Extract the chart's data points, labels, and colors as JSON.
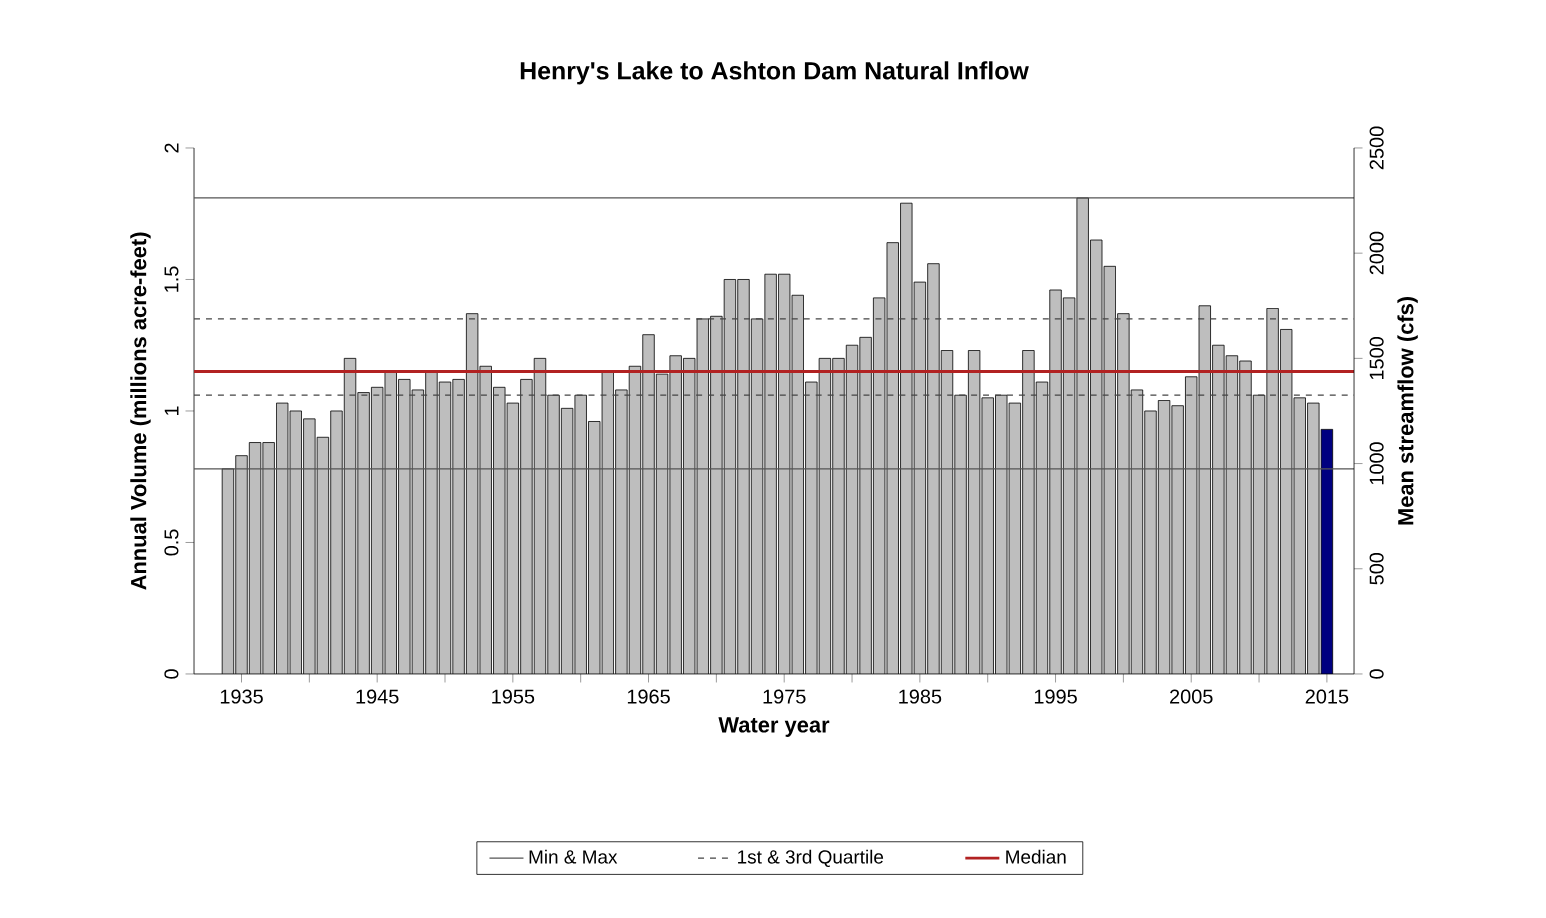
{
  "chart_data": {
    "type": "bar",
    "title": "Henry's Lake to Ashton Dam Natural Inflow",
    "xlabel": "Water year",
    "ylabel": "Annual Volume (millions acre-feet)",
    "y2label": "Mean streamflow (cfs)",
    "x": [
      1934,
      1935,
      1936,
      1937,
      1938,
      1939,
      1940,
      1941,
      1942,
      1943,
      1944,
      1945,
      1946,
      1947,
      1948,
      1949,
      1950,
      1951,
      1952,
      1953,
      1954,
      1955,
      1956,
      1957,
      1958,
      1959,
      1960,
      1961,
      1962,
      1963,
      1964,
      1965,
      1966,
      1967,
      1968,
      1969,
      1970,
      1971,
      1972,
      1973,
      1974,
      1975,
      1976,
      1977,
      1978,
      1979,
      1980,
      1981,
      1982,
      1983,
      1984,
      1985,
      1986,
      1987,
      1988,
      1989,
      1990,
      1991,
      1992,
      1993,
      1994,
      1995,
      1996,
      1997,
      1998,
      1999,
      2000,
      2001,
      2002,
      2003,
      2004,
      2005,
      2006,
      2007,
      2008,
      2009,
      2010,
      2011,
      2012,
      2013,
      2014,
      2015
    ],
    "values": [
      0.78,
      0.83,
      0.88,
      0.88,
      1.03,
      1.0,
      0.97,
      0.9,
      1.0,
      1.2,
      1.07,
      1.09,
      1.15,
      1.12,
      1.08,
      1.15,
      1.11,
      1.12,
      1.37,
      1.17,
      1.09,
      1.03,
      1.12,
      1.2,
      1.06,
      1.01,
      1.06,
      0.96,
      1.15,
      1.08,
      1.17,
      1.29,
      1.14,
      1.21,
      1.2,
      1.35,
      1.36,
      1.5,
      1.5,
      1.35,
      1.52,
      1.52,
      1.44,
      1.11,
      1.2,
      1.2,
      1.25,
      1.28,
      1.43,
      1.64,
      1.79,
      1.49,
      1.56,
      1.23,
      1.06,
      1.23,
      1.05,
      1.06,
      1.03,
      1.23,
      1.11,
      1.46,
      1.43,
      1.81,
      1.65,
      1.55,
      1.37,
      1.08,
      1.0,
      1.04,
      1.02,
      1.13,
      1.4,
      1.25,
      1.21,
      1.19,
      1.06,
      1.39,
      1.31,
      1.05,
      1.03,
      0.93
    ],
    "colors": [
      "#bebebe",
      "#bebebe",
      "#bebebe",
      "#bebebe",
      "#bebebe",
      "#bebebe",
      "#bebebe",
      "#bebebe",
      "#bebebe",
      "#bebebe",
      "#bebebe",
      "#bebebe",
      "#bebebe",
      "#bebebe",
      "#bebebe",
      "#bebebe",
      "#bebebe",
      "#bebebe",
      "#bebebe",
      "#bebebe",
      "#bebebe",
      "#bebebe",
      "#bebebe",
      "#bebebe",
      "#bebebe",
      "#bebebe",
      "#bebebe",
      "#bebebe",
      "#bebebe",
      "#bebebe",
      "#bebebe",
      "#bebebe",
      "#bebebe",
      "#bebebe",
      "#bebebe",
      "#bebebe",
      "#bebebe",
      "#bebebe",
      "#bebebe",
      "#bebebe",
      "#bebebe",
      "#bebebe",
      "#bebebe",
      "#bebebe",
      "#bebebe",
      "#bebebe",
      "#bebebe",
      "#bebebe",
      "#bebebe",
      "#bebebe",
      "#bebebe",
      "#bebebe",
      "#bebebe",
      "#bebebe",
      "#bebebe",
      "#bebebe",
      "#bebebe",
      "#bebebe",
      "#bebebe",
      "#bebebe",
      "#bebebe",
      "#bebebe",
      "#bebebe",
      "#bebebe",
      "#bebebe",
      "#bebebe",
      "#bebebe",
      "#bebebe",
      "#bebebe",
      "#bebebe",
      "#bebebe",
      "#bebebe",
      "#bebebe",
      "#bebebe",
      "#bebebe",
      "#bebebe",
      "#bebebe",
      "#bebebe",
      "#bebebe",
      "#bebebe",
      "#bebebe",
      "#000080"
    ],
    "xlim": [
      1931.5,
      2017
    ],
    "xticks": [
      1935,
      {
        "value": 1940,
        "label": null
      },
      1945,
      {
        "value": 1950,
        "label": null
      },
      1955,
      {
        "value": 1960,
        "label": null
      },
      1965,
      {
        "value": 1970,
        "label": null
      },
      1975,
      {
        "value": 1980,
        "label": null
      },
      1985,
      {
        "value": 1990,
        "label": null
      },
      1995,
      {
        "value": 2000,
        "label": null
      },
      2005,
      {
        "value": 2010,
        "label": null
      },
      2015
    ],
    "ylim": [
      0,
      2
    ],
    "yticks": [
      0,
      0.5,
      1,
      1.5,
      2
    ],
    "y2lim": [
      0,
      2500
    ],
    "y2ticks": [
      0,
      500,
      1000,
      1500,
      2000,
      2500
    ],
    "ref_lines": [
      {
        "axis": "y",
        "value": 0.78,
        "label": "Min & Max",
        "color": "#555555",
        "line_style": "solid"
      },
      {
        "axis": "y",
        "value": 1.81,
        "label": null,
        "color": "#555555",
        "line_style": "solid"
      },
      {
        "axis": "y",
        "value": 1.06,
        "label": "1st & 3rd Quartile",
        "color": "#444444",
        "line_style": "dashed"
      },
      {
        "axis": "y",
        "value": 1.35,
        "label": null,
        "color": "#444444",
        "line_style": "dashed"
      },
      {
        "axis": "y",
        "value": 1.15,
        "label": "Median",
        "color": "#b22222",
        "line_style": "solid"
      }
    ],
    "legend": "bottom",
    "grid": false
  }
}
